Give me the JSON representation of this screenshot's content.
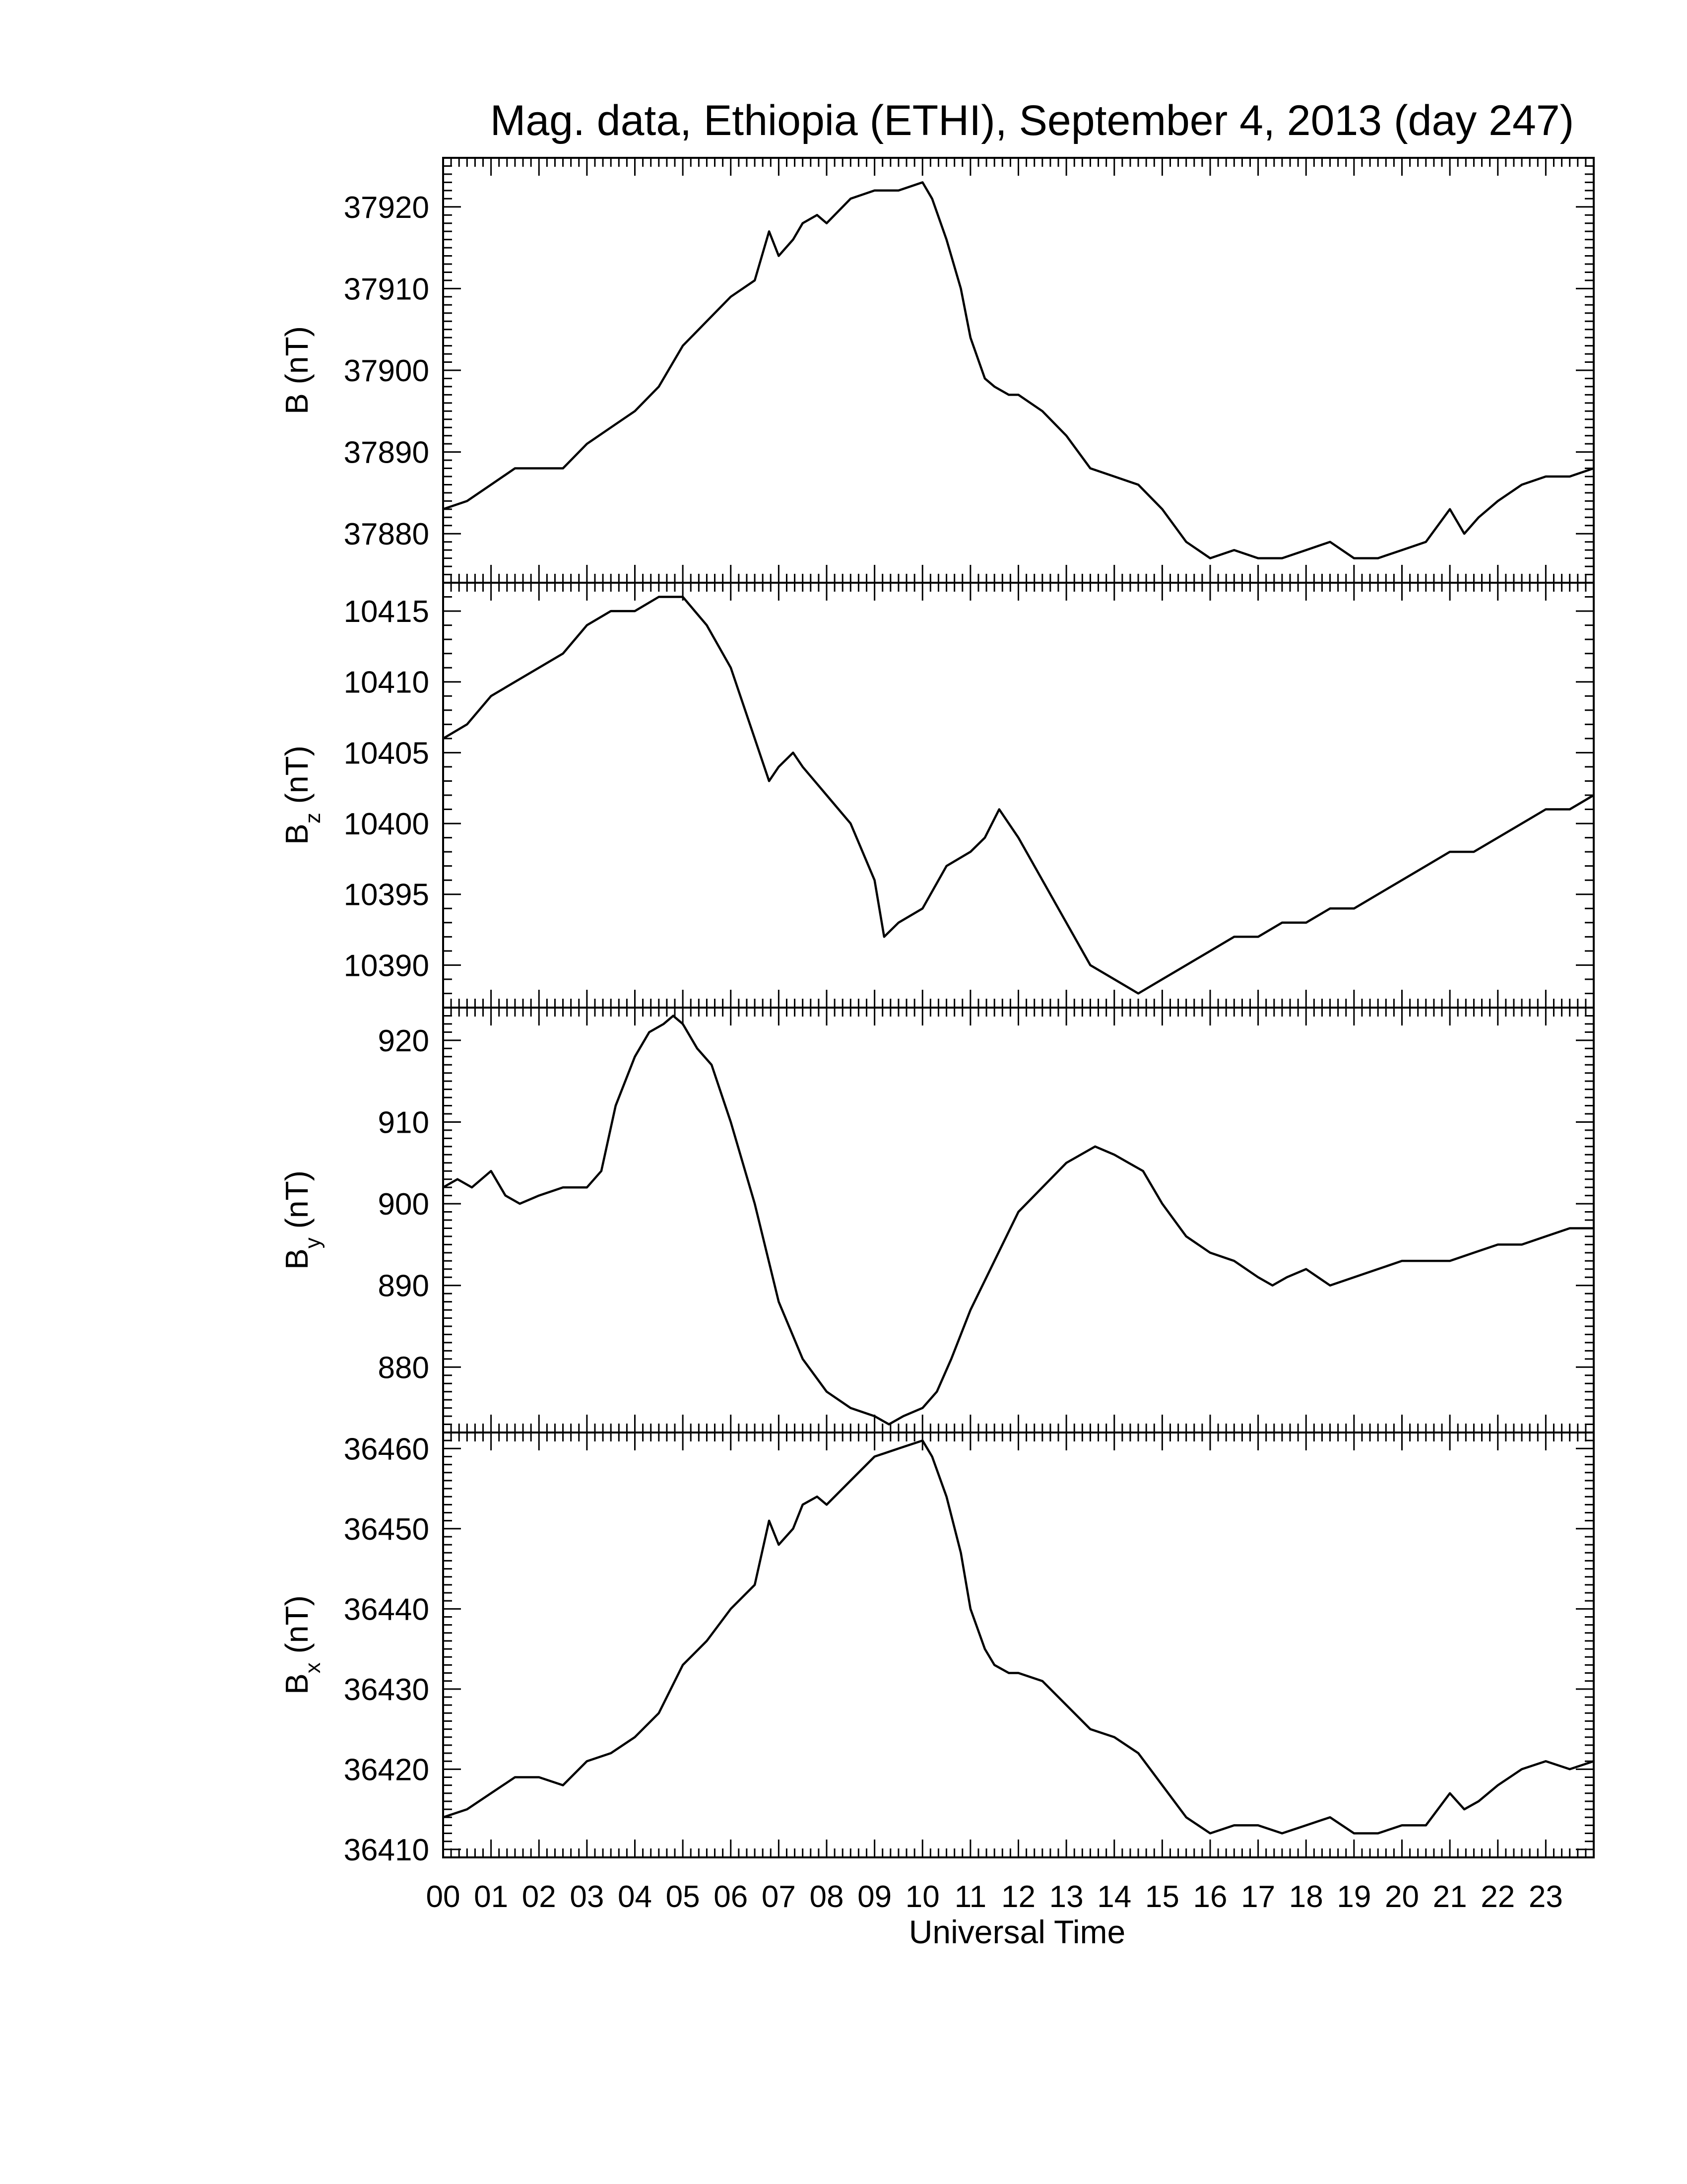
{
  "title": "Mag. data, Ethiopia (ETHI), September 4, 2013 (day 247)",
  "x_axis": {
    "label": "Universal Time",
    "tick_labels": [
      "00",
      "01",
      "02",
      "03",
      "04",
      "05",
      "06",
      "07",
      "08",
      "09",
      "10",
      "11",
      "12",
      "13",
      "14",
      "15",
      "16",
      "17",
      "18",
      "19",
      "20",
      "21",
      "22",
      "23"
    ]
  },
  "colors": {
    "line": "#000000",
    "axes": "#000000",
    "background": "#ffffff"
  },
  "chart_data": [
    {
      "type": "line",
      "component": "B",
      "ylabel": "B (nT)",
      "ylim": [
        37874,
        37926
      ],
      "yticks": [
        37880,
        37890,
        37900,
        37910,
        37920
      ],
      "xlim": [
        0,
        24
      ],
      "x": [
        0,
        0.5,
        1,
        1.5,
        2,
        2.5,
        3,
        3.5,
        4,
        4.5,
        5,
        5.5,
        6,
        6.5,
        6.8,
        7,
        7.3,
        7.5,
        7.8,
        8,
        8.5,
        9,
        9.5,
        10,
        10.2,
        10.5,
        10.8,
        11,
        11.3,
        11.5,
        11.8,
        12,
        12.5,
        13,
        13.5,
        14,
        14.5,
        15,
        15.5,
        16,
        16.5,
        17,
        17.5,
        18,
        18.5,
        19,
        19.5,
        20,
        20.5,
        21,
        21.3,
        21.6,
        22,
        22.5,
        23,
        23.5,
        24
      ],
      "y": [
        37883,
        37884,
        37886,
        37888,
        37888,
        37888,
        37891,
        37893,
        37895,
        37898,
        37903,
        37906,
        37909,
        37911,
        37917,
        37914,
        37916,
        37918,
        37919,
        37918,
        37921,
        37922,
        37922,
        37923,
        37921,
        37916,
        37910,
        37904,
        37899,
        37898,
        37897,
        37897,
        37895,
        37892,
        37888,
        37887,
        37886,
        37883,
        37879,
        37877,
        37878,
        37877,
        37877,
        37878,
        37879,
        37877,
        37877,
        37878,
        37879,
        37883,
        37880,
        37882,
        37884,
        37886,
        37887,
        37887,
        37888
      ]
    },
    {
      "type": "line",
      "component": "Bz",
      "ylabel": "Bz (nT)",
      "ylim": [
        10387,
        10417
      ],
      "yticks": [
        10390,
        10395,
        10400,
        10405,
        10410,
        10415
      ],
      "xlim": [
        0,
        24
      ],
      "x": [
        0,
        0.5,
        1,
        1.5,
        2,
        2.5,
        3,
        3.5,
        4,
        4.5,
        4.8,
        5,
        5.5,
        6,
        6.5,
        6.8,
        7,
        7.3,
        7.5,
        8,
        8.5,
        9,
        9.2,
        9.5,
        10,
        10.5,
        11,
        11.3,
        11.6,
        12,
        12.5,
        13,
        13.5,
        14,
        14.5,
        15,
        15.5,
        16,
        16.5,
        17,
        17.5,
        18,
        18.5,
        19,
        19.5,
        20,
        20.5,
        21,
        21.5,
        22,
        22.5,
        23,
        23.5,
        24
      ],
      "y": [
        10406,
        10407,
        10409,
        10410,
        10411,
        10412,
        10414,
        10415,
        10415,
        10416,
        10416,
        10416,
        10414,
        10411,
        10406,
        10403,
        10404,
        10405,
        10404,
        10402,
        10400,
        10396,
        10392,
        10393,
        10394,
        10397,
        10398,
        10399,
        10401,
        10399,
        10396,
        10393,
        10390,
        10389,
        10388,
        10389,
        10390,
        10391,
        10392,
        10392,
        10393,
        10393,
        10394,
        10394,
        10395,
        10396,
        10397,
        10398,
        10398,
        10399,
        10400,
        10401,
        10401,
        10402
      ]
    },
    {
      "type": "line",
      "component": "By",
      "ylabel": "By (nT)",
      "ylim": [
        872,
        924
      ],
      "yticks": [
        880,
        890,
        900,
        910,
        920
      ],
      "xlim": [
        0,
        24
      ],
      "x": [
        0,
        0.3,
        0.6,
        1,
        1.3,
        1.6,
        2,
        2.5,
        3,
        3.3,
        3.6,
        4,
        4.3,
        4.6,
        4.8,
        5,
        5.3,
        5.6,
        6,
        6.5,
        7,
        7.5,
        8,
        8.5,
        9,
        9.3,
        9.6,
        10,
        10.3,
        10.6,
        11,
        11.5,
        12,
        12.5,
        13,
        13.3,
        13.6,
        14,
        14.3,
        14.6,
        15,
        15.5,
        16,
        16.5,
        17,
        17.3,
        17.6,
        18,
        18.5,
        19,
        19.5,
        20,
        20.5,
        21,
        21.5,
        22,
        22.5,
        23,
        23.5,
        24
      ],
      "y": [
        902,
        903,
        902,
        904,
        901,
        900,
        901,
        902,
        902,
        904,
        912,
        918,
        921,
        922,
        923,
        922,
        919,
        917,
        910,
        900,
        888,
        881,
        877,
        875,
        874,
        873,
        874,
        875,
        877,
        881,
        887,
        893,
        899,
        902,
        905,
        906,
        907,
        906,
        905,
        904,
        900,
        896,
        894,
        893,
        891,
        890,
        891,
        892,
        890,
        891,
        892,
        893,
        893,
        893,
        894,
        895,
        895,
        896,
        897,
        897
      ]
    },
    {
      "type": "line",
      "component": "Bx",
      "ylabel": "Bx (nT)",
      "ylim": [
        36409,
        36462
      ],
      "yticks": [
        36410,
        36420,
        36430,
        36440,
        36450,
        36460
      ],
      "xlim": [
        0,
        24
      ],
      "x": [
        0,
        0.5,
        1,
        1.5,
        2,
        2.5,
        3,
        3.5,
        4,
        4.5,
        5,
        5.5,
        6,
        6.5,
        6.8,
        7,
        7.3,
        7.5,
        7.8,
        8,
        8.5,
        9,
        9.5,
        10,
        10.2,
        10.5,
        10.8,
        11,
        11.3,
        11.5,
        11.8,
        12,
        12.5,
        13,
        13.5,
        14,
        14.5,
        15,
        15.5,
        16,
        16.5,
        17,
        17.5,
        18,
        18.5,
        19,
        19.5,
        20,
        20.5,
        21,
        21.3,
        21.6,
        22,
        22.5,
        23,
        23.5,
        24
      ],
      "y": [
        36414,
        36415,
        36417,
        36419,
        36419,
        36418,
        36421,
        36422,
        36424,
        36427,
        36433,
        36436,
        36440,
        36443,
        36451,
        36448,
        36450,
        36453,
        36454,
        36453,
        36456,
        36459,
        36460,
        36461,
        36459,
        36454,
        36447,
        36440,
        36435,
        36433,
        36432,
        36432,
        36431,
        36428,
        36425,
        36424,
        36422,
        36418,
        36414,
        36412,
        36413,
        36413,
        36412,
        36413,
        36414,
        36412,
        36412,
        36413,
        36413,
        36417,
        36415,
        36416,
        36418,
        36420,
        36421,
        36420,
        36421
      ]
    }
  ]
}
